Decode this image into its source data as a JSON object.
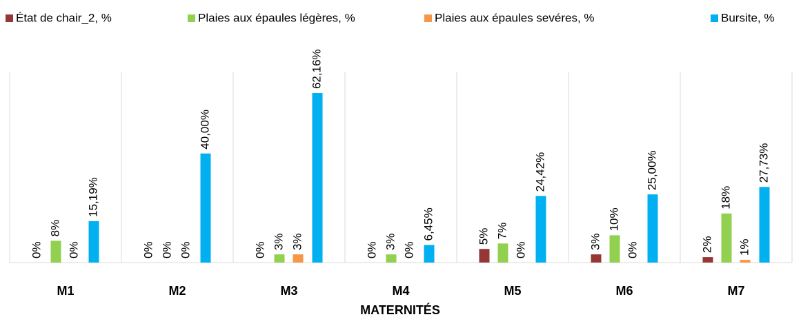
{
  "chart_data": {
    "type": "bar",
    "x_label": "MATERNITÉS",
    "categories": [
      "M1",
      "M2",
      "M3",
      "M4",
      "M5",
      "M6",
      "M7"
    ],
    "series": [
      {
        "name": "État de chair_2, %",
        "color": "#953735",
        "values": [
          0,
          0,
          0,
          0,
          5,
          3,
          2
        ],
        "value_labels": [
          "0%",
          "0%",
          "0%",
          "0%",
          "5%",
          "3%",
          "2%"
        ]
      },
      {
        "name": "Plaies aux  épaules légères, %",
        "color": "#92d050",
        "values": [
          8,
          0,
          3,
          3,
          7,
          10,
          18
        ],
        "value_labels": [
          "8%",
          "0%",
          "3%",
          "3%",
          "7%",
          "10%",
          "18%"
        ]
      },
      {
        "name": "Plaies aux  épaules sevéres, %",
        "color": "#f79646",
        "values": [
          0,
          0,
          3,
          0,
          0,
          0,
          1
        ],
        "value_labels": [
          "0%",
          "0%",
          "3%",
          "0%",
          "0%",
          "0%",
          "1%"
        ]
      },
      {
        "name": "Bursite, %",
        "color": "#00b0f0",
        "values": [
          15.19,
          40,
          62.16,
          6.45,
          24.42,
          25,
          27.73
        ],
        "value_labels": [
          "15,19%",
          "40,00%",
          "62,16%",
          "6,45%",
          "24,42%",
          "25,00%",
          "27,73%"
        ]
      }
    ],
    "ylim": [
      0,
      70
    ]
  }
}
